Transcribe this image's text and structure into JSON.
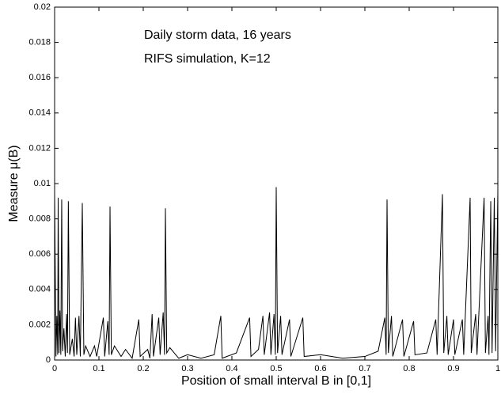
{
  "chart_data": {
    "type": "line",
    "annotations": [
      "Daily storm data, 16 years",
      "RIFS simulation, K=12"
    ],
    "x_label": "Position of small interval B in [0,1]",
    "y_label": "Measure μ(B)",
    "color": "#000000",
    "xlim": [
      0,
      1
    ],
    "xticks": [
      0,
      0.1,
      0.2,
      0.3,
      0.4,
      0.5,
      0.6,
      0.7,
      0.8,
      0.9,
      1
    ],
    "ylim": [
      0,
      0.02
    ],
    "yticks": [
      0,
      0.002,
      0.004,
      0.006,
      0.008,
      0.01,
      0.012,
      0.014,
      0.016,
      0.018,
      0.02
    ],
    "x": [
      0,
      0.003,
      0.005,
      0.007,
      0.008,
      0.01,
      0.012,
      0.014,
      0.016,
      0.018,
      0.021,
      0.024,
      0.027,
      0.029,
      0.031,
      0.034,
      0.04,
      0.044,
      0.047,
      0.05,
      0.055,
      0.058,
      0.0625,
      0.066,
      0.07,
      0.08,
      0.09,
      0.095,
      0.11,
      0.113,
      0.12,
      0.123,
      0.125,
      0.128,
      0.135,
      0.15,
      0.16,
      0.175,
      0.19,
      0.193,
      0.21,
      0.215,
      0.22,
      0.223,
      0.235,
      0.238,
      0.245,
      0.248,
      0.25,
      0.253,
      0.26,
      0.28,
      0.3,
      0.33,
      0.36,
      0.375,
      0.378,
      0.41,
      0.44,
      0.443,
      0.46,
      0.47,
      0.473,
      0.485,
      0.488,
      0.495,
      0.498,
      0.5,
      0.503,
      0.51,
      0.513,
      0.53,
      0.533,
      0.56,
      0.563,
      0.6,
      0.65,
      0.7,
      0.73,
      0.745,
      0.748,
      0.75,
      0.753,
      0.76,
      0.763,
      0.785,
      0.788,
      0.81,
      0.813,
      0.84,
      0.86,
      0.863,
      0.875,
      0.878,
      0.885,
      0.888,
      0.9,
      0.903,
      0.92,
      0.923,
      0.9375,
      0.94,
      0.95,
      0.953,
      0.969,
      0.972,
      0.978,
      0.98,
      0.984,
      0.987,
      0.992,
      0.995,
      1
    ],
    "values": [
      0.0095,
      0.0002,
      0.0025,
      0.0003,
      0.0092,
      0.0004,
      0.0028,
      0.0003,
      0.0091,
      0.0005,
      0.0018,
      0.0002,
      0.0026,
      0.0004,
      0.009,
      0.0003,
      0.0012,
      0.0002,
      0.0024,
      0.0003,
      0.0025,
      0.0002,
      0.0089,
      0.0003,
      0.0008,
      0.0002,
      0.0008,
      0.0002,
      0.0024,
      0.0002,
      0.0022,
      0.0003,
      0.0087,
      0.0003,
      0.0008,
      0.0002,
      0.0006,
      0.0001,
      0.0023,
      0.0002,
      0.0006,
      0.0001,
      0.0026,
      0.0002,
      0.0024,
      0.0003,
      0.0027,
      0.0003,
      0.0086,
      0.0004,
      0.0007,
      0.0001,
      0.0003,
      0.0001,
      0.0003,
      0.0025,
      0.0001,
      0.0004,
      0.0024,
      0.0002,
      0.0006,
      0.0025,
      0.0003,
      0.0027,
      0.0003,
      0.0026,
      0.0003,
      0.0098,
      0.0004,
      0.0025,
      0.0003,
      0.0023,
      0.0002,
      0.0024,
      0.0002,
      0.0003,
      0.0001,
      0.0002,
      0.0005,
      0.0024,
      0.0003,
      0.0091,
      0.0004,
      0.0025,
      0.0002,
      0.0023,
      0.0002,
      0.0022,
      0.0003,
      0.0004,
      0.0023,
      0.0003,
      0.0094,
      0.0004,
      0.0025,
      0.0003,
      0.0023,
      0.0003,
      0.0023,
      0.0003,
      0.0092,
      0.0004,
      0.0026,
      0.0003,
      0.0092,
      0.0004,
      0.0025,
      0.0003,
      0.009,
      0.0004,
      0.0092,
      0.0005,
      0.0095
    ]
  }
}
